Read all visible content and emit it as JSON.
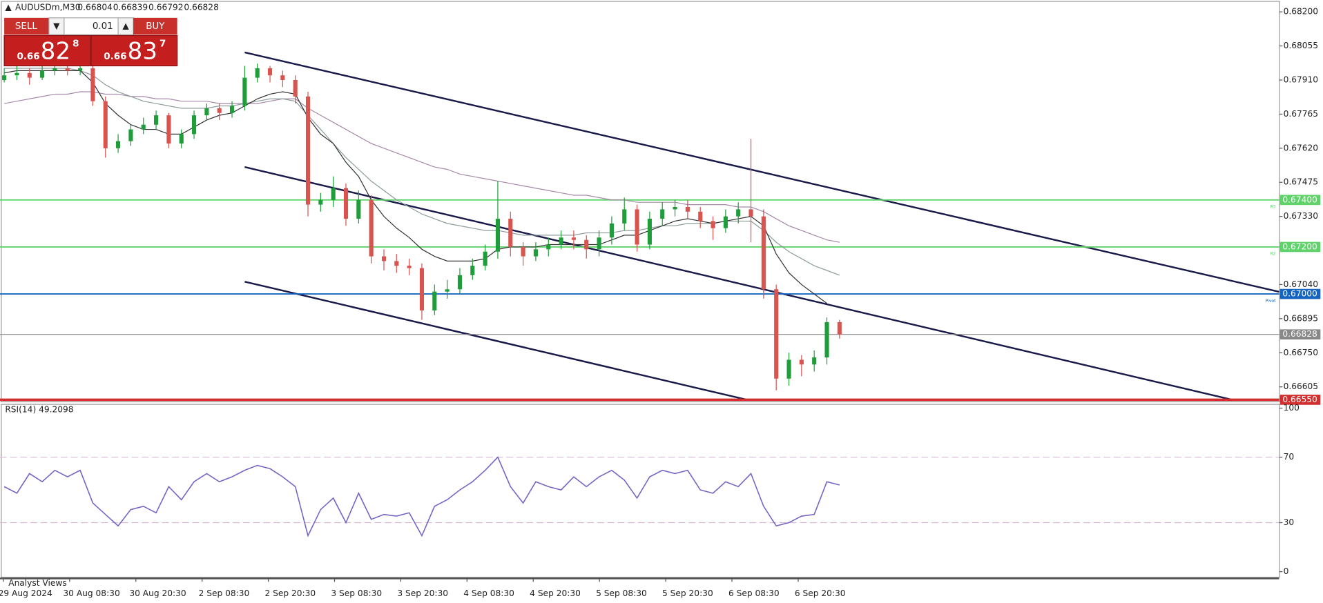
{
  "chart_data": {
    "type": "candlestick",
    "symbol": "AUDUSDm,M30",
    "quote": [
      "0.66804",
      "0.66839",
      "0.66792",
      "0.66828"
    ],
    "x_labels": [
      "29 Aug 2024",
      "30 Aug 08:30",
      "30 Aug 20:30",
      "2 Sep 08:30",
      "2 Sep 20:30",
      "3 Sep 08:30",
      "3 Sep 20:30",
      "4 Sep 08:30",
      "4 Sep 20:30",
      "5 Sep 08:30",
      "5 Sep 20:30",
      "6 Sep 08:30",
      "6 Sep 20:30"
    ],
    "open": [
      0.6791,
      0.6793,
      0.6794,
      0.6792,
      0.6795,
      0.6796,
      0.6795,
      0.6796,
      0.6782,
      0.6762,
      0.6765,
      0.677,
      0.6772,
      0.6776,
      0.6764,
      0.6768,
      0.6776,
      0.6779,
      0.6777,
      0.678,
      0.6792,
      0.6796,
      0.6793,
      0.6791,
      0.6784,
      0.6738,
      0.674,
      0.6745,
      0.6732,
      0.674,
      0.6716,
      0.6714,
      0.6712,
      0.6711,
      0.6693,
      0.6701,
      0.6702,
      0.6708,
      0.6712,
      0.6718,
      0.6732,
      0.672,
      0.6716,
      0.6719,
      0.6721,
      0.6724,
      0.6723,
      0.6719,
      0.6724,
      0.673,
      0.6736,
      0.6721,
      0.6732,
      0.6736,
      0.6737,
      0.6735,
      0.6731,
      0.6728,
      0.6733,
      0.6736,
      0.6733,
      0.6702,
      0.6664,
      0.6672,
      0.667,
      0.6673,
      0.6688
    ],
    "high": [
      0.6796,
      0.6797,
      0.6796,
      0.6797,
      0.6798,
      0.6798,
      0.6798,
      0.6799,
      0.6784,
      0.6768,
      0.6772,
      0.6775,
      0.6778,
      0.6777,
      0.677,
      0.6778,
      0.6781,
      0.6781,
      0.6782,
      0.6797,
      0.6798,
      0.6797,
      0.6795,
      0.6793,
      0.6786,
      0.6743,
      0.675,
      0.6747,
      0.6744,
      0.6742,
      0.6719,
      0.6717,
      0.6715,
      0.6713,
      0.6704,
      0.6706,
      0.6711,
      0.6715,
      0.6721,
      0.6748,
      0.6735,
      0.6722,
      0.6722,
      0.6724,
      0.6727,
      0.6727,
      0.6725,
      0.6727,
      0.6733,
      0.6741,
      0.6738,
      0.6735,
      0.6739,
      0.674,
      0.674,
      0.6737,
      0.6733,
      0.6736,
      0.6739,
      0.6766,
      0.6736,
      0.6704,
      0.6675,
      0.6674,
      0.6676,
      0.669,
      0.6689
    ],
    "low": [
      0.679,
      0.6791,
      0.6789,
      0.6791,
      0.6793,
      0.6793,
      0.6793,
      0.678,
      0.6758,
      0.676,
      0.6763,
      0.6768,
      0.677,
      0.6762,
      0.6762,
      0.6766,
      0.6774,
      0.6774,
      0.6775,
      0.6778,
      0.679,
      0.679,
      0.6788,
      0.6781,
      0.6733,
      0.6735,
      0.6737,
      0.6729,
      0.673,
      0.6713,
      0.671,
      0.6709,
      0.6708,
      0.6689,
      0.6691,
      0.6698,
      0.67,
      0.6706,
      0.671,
      0.6715,
      0.6716,
      0.6712,
      0.6714,
      0.6716,
      0.6719,
      0.6719,
      0.6715,
      0.6716,
      0.6721,
      0.6727,
      0.6718,
      0.6719,
      0.6729,
      0.6733,
      0.6732,
      0.6728,
      0.6723,
      0.6726,
      0.673,
      0.6722,
      0.6698,
      0.6659,
      0.6661,
      0.6665,
      0.6667,
      0.667,
      0.6681
    ],
    "close": [
      0.6793,
      0.6794,
      0.6792,
      0.6795,
      0.6796,
      0.6795,
      0.6796,
      0.6782,
      0.6762,
      0.6765,
      0.677,
      0.6772,
      0.6776,
      0.6764,
      0.6768,
      0.6776,
      0.6779,
      0.6777,
      0.678,
      0.6792,
      0.6796,
      0.6793,
      0.6791,
      0.6784,
      0.6738,
      0.674,
      0.6745,
      0.6732,
      0.674,
      0.6716,
      0.6714,
      0.6712,
      0.6711,
      0.6693,
      0.6701,
      0.6702,
      0.6708,
      0.6712,
      0.6718,
      0.6732,
      0.672,
      0.6716,
      0.6719,
      0.6721,
      0.6724,
      0.6723,
      0.6719,
      0.6724,
      0.673,
      0.6736,
      0.6721,
      0.6732,
      0.6736,
      0.6737,
      0.6735,
      0.6731,
      0.6728,
      0.6733,
      0.6736,
      0.6733,
      0.6702,
      0.6664,
      0.6672,
      0.667,
      0.6673,
      0.6688,
      0.66828
    ],
    "up_color": "#1f9d3a",
    "down_color": "#d9534f",
    "ylim": [
      0.66543,
      0.6825
    ],
    "yticks": [
      {
        "value": 0.682,
        "label": "0.68200"
      },
      0.68055,
      {
        "value": 0.6791,
        "label": "0.67910"
      },
      0.67765,
      {
        "value": 0.6762,
        "label": "0.67620"
      },
      0.67475,
      {
        "value": 0.6733,
        "label": "0.67330"
      },
      {
        "value": 0.6704,
        "label": "0.67040"
      },
      0.66895,
      {
        "value": 0.6675,
        "label": "0.66750"
      },
      0.66605
    ],
    "moving_averages": [
      {
        "color": "#a58aa8",
        "values": [
          0.6781,
          0.6782,
          0.6783,
          0.6784,
          0.6785,
          0.6785,
          0.6786,
          0.6786,
          0.6785,
          0.6785,
          0.6784,
          0.6784,
          0.6783,
          0.6783,
          0.6782,
          0.6782,
          0.6782,
          0.6781,
          0.6781,
          0.6781,
          0.6781,
          0.6782,
          0.6783,
          0.6783,
          0.6779,
          0.6776,
          0.6773,
          0.677,
          0.6767,
          0.6764,
          0.6762,
          0.676,
          0.6758,
          0.6756,
          0.6754,
          0.6753,
          0.6751,
          0.675,
          0.6749,
          0.6748,
          0.6747,
          0.6746,
          0.6745,
          0.6744,
          0.6743,
          0.6742,
          0.6742,
          0.6741,
          0.674,
          0.674,
          0.6739,
          0.6739,
          0.6739,
          0.6739,
          0.6738,
          0.6738,
          0.6738,
          0.6738,
          0.6737,
          0.6737,
          0.6735,
          0.6732,
          0.6729,
          0.6727,
          0.6725,
          0.6723,
          0.6722
        ]
      },
      {
        "color": "#8e9c9c",
        "values": [
          0.6796,
          0.6796,
          0.6796,
          0.6796,
          0.6796,
          0.6796,
          0.6795,
          0.6793,
          0.6789,
          0.6786,
          0.6784,
          0.6782,
          0.6781,
          0.678,
          0.6779,
          0.6779,
          0.6779,
          0.678,
          0.678,
          0.6781,
          0.6782,
          0.6783,
          0.6783,
          0.6782,
          0.6776,
          0.677,
          0.6764,
          0.6758,
          0.6753,
          0.6748,
          0.6744,
          0.674,
          0.6737,
          0.6734,
          0.6732,
          0.673,
          0.6729,
          0.6728,
          0.6727,
          0.6727,
          0.6726,
          0.6725,
          0.6725,
          0.6725,
          0.6725,
          0.6725,
          0.6726,
          0.6726,
          0.6726,
          0.6727,
          0.6727,
          0.6728,
          0.6729,
          0.6729,
          0.673,
          0.673,
          0.673,
          0.6731,
          0.6731,
          0.6731,
          0.6727,
          0.6722,
          0.6718,
          0.6715,
          0.6712,
          0.671,
          0.6708
        ]
      },
      {
        "color": "#333333",
        "values": [
          0.6794,
          0.6795,
          0.6795,
          0.6795,
          0.6795,
          0.6795,
          0.6795,
          0.679,
          0.6781,
          0.6776,
          0.6772,
          0.677,
          0.677,
          0.6768,
          0.6768,
          0.6771,
          0.6774,
          0.6776,
          0.6777,
          0.678,
          0.6783,
          0.6785,
          0.6786,
          0.6785,
          0.6775,
          0.6768,
          0.6764,
          0.6756,
          0.675,
          0.674,
          0.6733,
          0.6728,
          0.6724,
          0.6719,
          0.6716,
          0.6714,
          0.6714,
          0.6714,
          0.6715,
          0.6719,
          0.672,
          0.672,
          0.672,
          0.6721,
          0.6721,
          0.6721,
          0.6721,
          0.6721,
          0.6723,
          0.6725,
          0.6725,
          0.6727,
          0.6729,
          0.6731,
          0.6732,
          0.6731,
          0.673,
          0.6731,
          0.6732,
          0.6733,
          0.6729,
          0.6717,
          0.6709,
          0.6704,
          0.67,
          0.6696,
          null
        ]
      }
    ],
    "levels": [
      {
        "value": 0.674,
        "label": "0.67400",
        "name": "R3",
        "color": "#5fd36a"
      },
      {
        "value": 0.672,
        "label": "0.67200",
        "name": "R2",
        "color": "#5fd36a"
      },
      {
        "value": 0.67,
        "label": "0.67000",
        "name": "Pivot",
        "color": "#1565c0"
      },
      {
        "value": 0.66828,
        "label": "0.66828",
        "color": "#888888"
      },
      {
        "value": 0.6655,
        "label": "0.66550",
        "color": "#d32f2f"
      }
    ],
    "rsi": {
      "title": "RSI(14) 49.2098",
      "color": "#7266c2",
      "ylim": [
        0,
        100
      ],
      "yticks": [
        0,
        30,
        70,
        100
      ],
      "dashed": [
        30,
        70
      ],
      "values": [
        52,
        48,
        60,
        55,
        62,
        58,
        62,
        42,
        35,
        28,
        38,
        40,
        36,
        52,
        44,
        55,
        60,
        55,
        58,
        62,
        65,
        63,
        58,
        52,
        22,
        38,
        45,
        30,
        48,
        32,
        35,
        34,
        36,
        22,
        40,
        44,
        50,
        55,
        62,
        70,
        52,
        42,
        55,
        52,
        50,
        58,
        52,
        58,
        62,
        56,
        45,
        58,
        62,
        60,
        62,
        50,
        48,
        55,
        52,
        60,
        40,
        28,
        30,
        34,
        35,
        55,
        53
      ]
    },
    "footer": "Analyst Views"
  },
  "trade_panel": {
    "sell": "SELL",
    "buy": "BUY",
    "lot": "0.01",
    "bid": {
      "prefix": "0.66",
      "pips": "82",
      "fraction": "8"
    },
    "ask": {
      "prefix": "0.66",
      "pips": "83",
      "fraction": "7"
    }
  }
}
